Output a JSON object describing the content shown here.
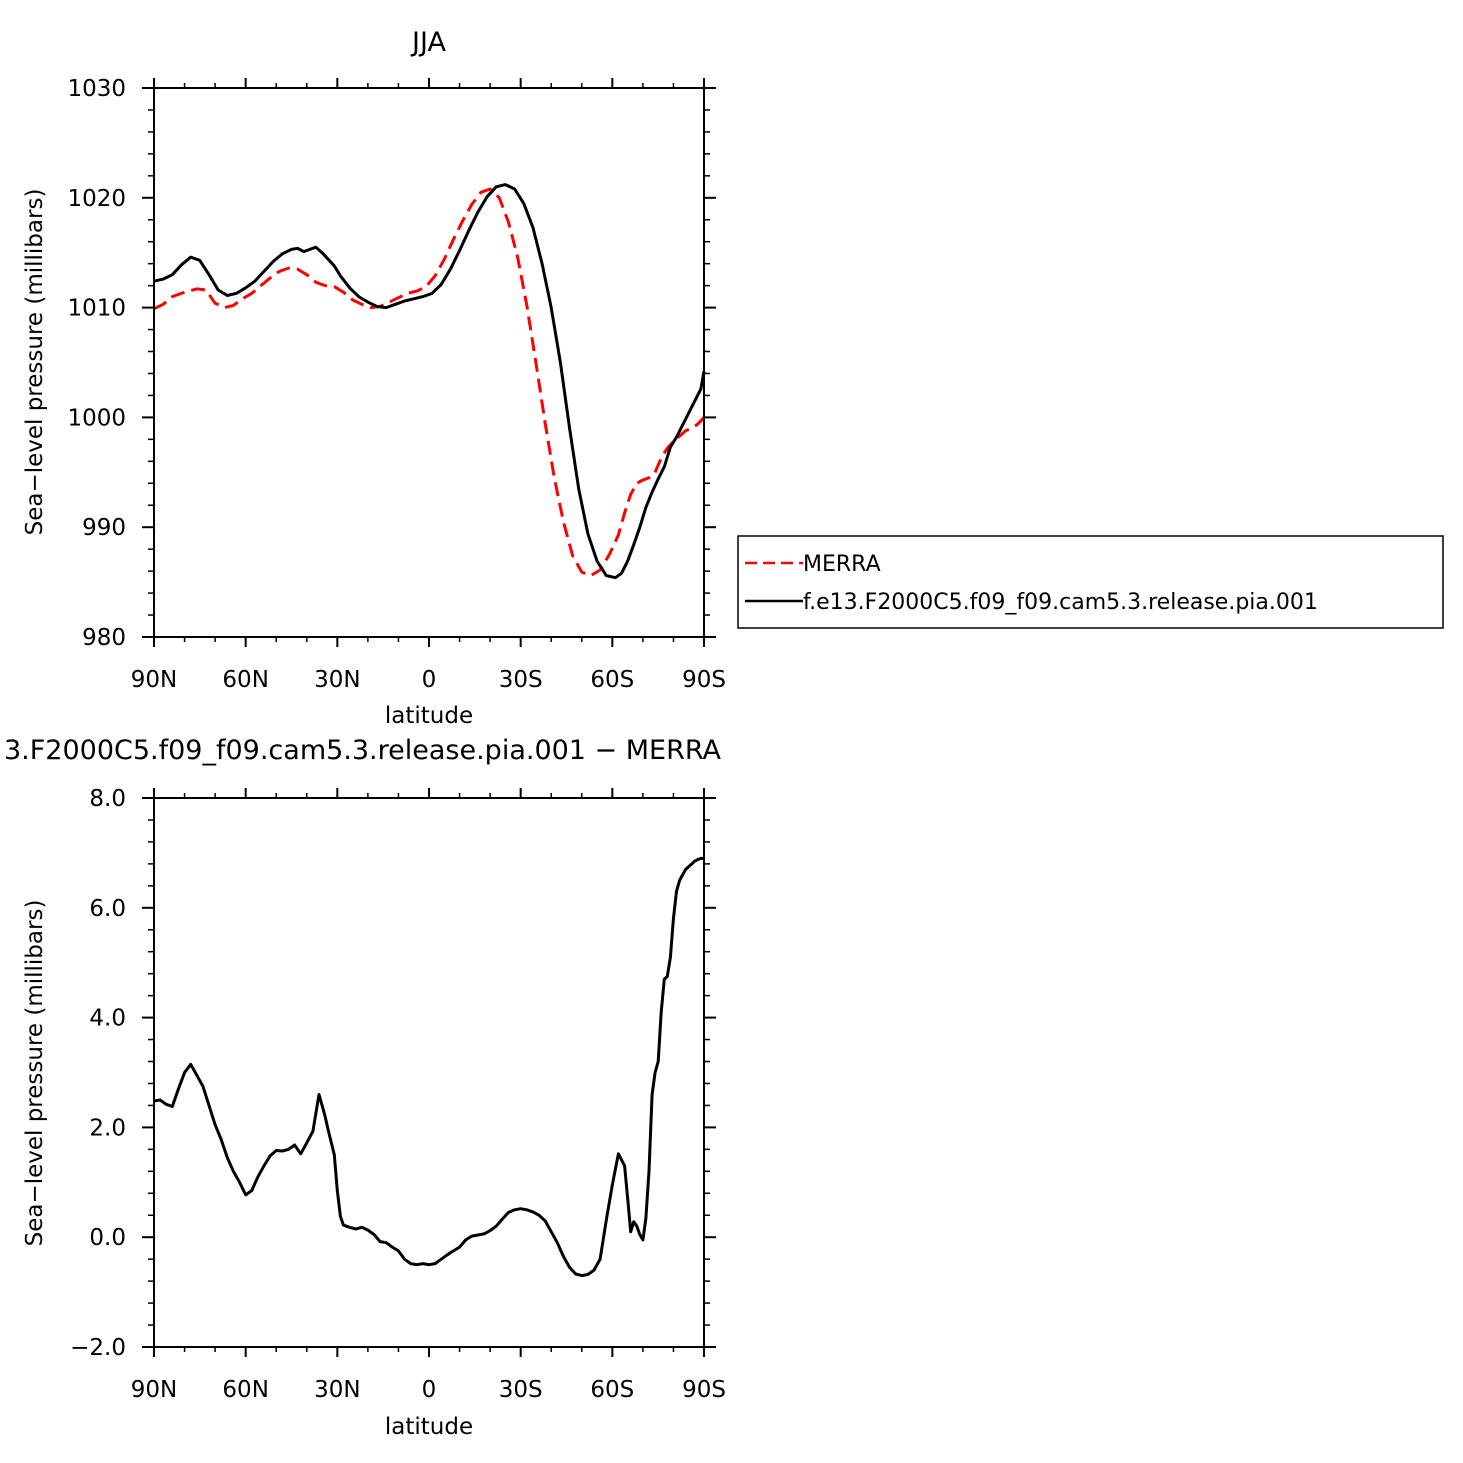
{
  "figure": {
    "top_title": "JJA",
    "bottom_title": "3.F2000C5.f09_f09.cam5.3.release.pia.001  −  MERRA"
  },
  "chart_data": [
    {
      "type": "line",
      "title": "JJA",
      "xlabel": "latitude",
      "ylabel": "Sea−level pressure (millibars)",
      "xlim": [
        90,
        -90
      ],
      "ylim": [
        980,
        1030
      ],
      "xticks": [
        90,
        60,
        30,
        0,
        -30,
        -60,
        -90
      ],
      "xticklabels": [
        "90N",
        "60N",
        "30N",
        "0",
        "30S",
        "60S",
        "90S"
      ],
      "yticks": [
        980,
        990,
        1000,
        1010,
        1020,
        1030
      ],
      "yticklabels": [
        "980",
        "990",
        "1000",
        "1010",
        "1020",
        "1030"
      ],
      "legend_position": "right",
      "series": [
        {
          "name": "MERRA",
          "color": "#ff0000",
          "dash": "dashed",
          "x": [
            90,
            87,
            84,
            80,
            76,
            73,
            70,
            67,
            64,
            61,
            58,
            55,
            52,
            49,
            46,
            43,
            40,
            37,
            34,
            31,
            28,
            25,
            22,
            19,
            16,
            13,
            10,
            7,
            4,
            1,
            -2,
            -5,
            -8,
            -11,
            -14,
            -17,
            -20,
            -23,
            -26,
            -29,
            -32,
            -35,
            -38,
            -41,
            -44,
            -47,
            -50,
            -53,
            -56,
            -59,
            -62,
            -64,
            -66,
            -68,
            -70,
            -72,
            -74,
            -76,
            -78,
            -80,
            -82,
            -84,
            -86,
            -88,
            -90
          ],
          "y": [
            1009.9,
            1010.3,
            1011.0,
            1011.4,
            1011.7,
            1011.6,
            1010.4,
            1010.0,
            1010.2,
            1010.8,
            1011.3,
            1012.0,
            1012.7,
            1013.3,
            1013.6,
            1013.5,
            1013.0,
            1012.3,
            1012.0,
            1011.9,
            1011.4,
            1010.7,
            1010.3,
            1010.0,
            1010.1,
            1010.5,
            1010.9,
            1011.3,
            1011.5,
            1011.9,
            1012.9,
            1014.4,
            1016.2,
            1017.9,
            1019.4,
            1020.5,
            1020.8,
            1020.0,
            1017.8,
            1014.6,
            1010.2,
            1005.0,
            999.5,
            994.5,
            990.5,
            987.4,
            985.9,
            985.6,
            986.1,
            987.5,
            989.3,
            991.3,
            993.0,
            994.0,
            994.3,
            994.5,
            995.0,
            996.3,
            997.2,
            997.8,
            998.3,
            998.8,
            999.0,
            999.4,
            1000.0
          ]
        },
        {
          "name": "f.e13.F2000C5.f09_f09.cam5.3.release.pia.001",
          "color": "#000000",
          "dash": "solid",
          "x": [
            90,
            87,
            84,
            81,
            78,
            75,
            72,
            69,
            66,
            63,
            60,
            57,
            54,
            51,
            48,
            45,
            43,
            41,
            39,
            37,
            35,
            33,
            31,
            29,
            26,
            23,
            20,
            17,
            14,
            11,
            8,
            5,
            2,
            -1,
            -4,
            -7,
            -10,
            -13,
            -16,
            -19,
            -22,
            -25,
            -28,
            -31,
            -34,
            -37,
            -40,
            -43,
            -46,
            -49,
            -52,
            -55,
            -58,
            -61,
            -63,
            -65,
            -67,
            -69,
            -71,
            -73,
            -75,
            -77,
            -79,
            -81,
            -83,
            -85,
            -87,
            -89,
            -90
          ],
          "y": [
            1012.4,
            1012.6,
            1013.0,
            1013.9,
            1014.6,
            1014.3,
            1013.0,
            1011.6,
            1011.1,
            1011.3,
            1011.8,
            1012.4,
            1013.3,
            1014.2,
            1014.9,
            1015.3,
            1015.4,
            1015.1,
            1015.3,
            1015.5,
            1015.0,
            1014.4,
            1013.8,
            1012.9,
            1011.8,
            1011.0,
            1010.5,
            1010.1,
            1010.0,
            1010.3,
            1010.6,
            1010.8,
            1011.0,
            1011.3,
            1012.1,
            1013.5,
            1015.2,
            1017.0,
            1018.7,
            1020.1,
            1021.0,
            1021.2,
            1020.8,
            1019.5,
            1017.3,
            1014.0,
            1010.0,
            1005.0,
            999.0,
            993.5,
            989.4,
            986.9,
            985.6,
            985.4,
            985.8,
            986.9,
            988.4,
            990.0,
            991.8,
            993.2,
            994.4,
            995.5,
            997.3,
            998.2,
            999.3,
            1000.4,
            1001.5,
            1002.6,
            1004.2
          ]
        }
      ]
    },
    {
      "type": "line",
      "title": "3.F2000C5.f09_f09.cam5.3.release.pia.001  −  MERRA",
      "xlabel": "latitude",
      "ylabel": "Sea−level pressure (millibars)",
      "xlim": [
        90,
        -90
      ],
      "ylim": [
        -2.0,
        8.0
      ],
      "xticks": [
        90,
        60,
        30,
        0,
        -30,
        -60,
        -90
      ],
      "xticklabels": [
        "90N",
        "60N",
        "30N",
        "0",
        "30S",
        "60S",
        "90S"
      ],
      "yticks": [
        -2.0,
        0.0,
        2.0,
        4.0,
        6.0,
        8.0
      ],
      "yticklabels": [
        "−2.0",
        "0.0",
        "2.0",
        "4.0",
        "6.0",
        "8.0"
      ],
      "series": [
        {
          "color": "#000000",
          "dash": "solid",
          "x": [
            90,
            88,
            86,
            84,
            82,
            80,
            78,
            76,
            74,
            72,
            70,
            68,
            66,
            64,
            62,
            60,
            58,
            56,
            54,
            52,
            50,
            48,
            46,
            44,
            42,
            40,
            38,
            36,
            35,
            34,
            33,
            31,
            30,
            29,
            28,
            27,
            26,
            24,
            22,
            20,
            18,
            16,
            14,
            12,
            10,
            8,
            6,
            4,
            2,
            0,
            -2,
            -4,
            -6,
            -8,
            -10,
            -12,
            -14,
            -16,
            -18,
            -20,
            -22,
            -24,
            -26,
            -28,
            -30,
            -32,
            -34,
            -36,
            -38,
            -40,
            -42,
            -44,
            -46,
            -48,
            -50,
            -52,
            -54,
            -56,
            -58,
            -60,
            -62,
            -64,
            -65,
            -66,
            -67,
            -68,
            -69,
            -70,
            -71,
            -72,
            -73,
            -74,
            -75,
            -76,
            -77,
            -78,
            -79,
            -80,
            -81,
            -82,
            -83,
            -84,
            -85,
            -86,
            -87,
            -88,
            -89,
            -90
          ],
          "y": [
            2.48,
            2.5,
            2.42,
            2.38,
            2.7,
            3.0,
            3.15,
            2.95,
            2.75,
            2.4,
            2.05,
            1.78,
            1.45,
            1.2,
            1.0,
            0.77,
            0.85,
            1.1,
            1.3,
            1.48,
            1.58,
            1.57,
            1.6,
            1.68,
            1.52,
            1.72,
            1.93,
            2.6,
            2.4,
            2.2,
            1.95,
            1.5,
            0.85,
            0.38,
            0.22,
            0.2,
            0.18,
            0.15,
            0.18,
            0.13,
            0.05,
            -0.08,
            -0.1,
            -0.18,
            -0.25,
            -0.4,
            -0.48,
            -0.5,
            -0.48,
            -0.5,
            -0.48,
            -0.4,
            -0.32,
            -0.25,
            -0.18,
            -0.05,
            0.02,
            0.04,
            0.06,
            0.12,
            0.2,
            0.33,
            0.45,
            0.5,
            0.52,
            0.5,
            0.46,
            0.4,
            0.3,
            0.1,
            -0.1,
            -0.35,
            -0.55,
            -0.67,
            -0.7,
            -0.68,
            -0.6,
            -0.4,
            0.3,
            0.95,
            1.52,
            1.3,
            0.72,
            0.1,
            0.28,
            0.2,
            0.05,
            -0.05,
            0.35,
            1.2,
            2.6,
            3.0,
            3.2,
            4.1,
            4.7,
            4.75,
            5.1,
            5.8,
            6.3,
            6.5,
            6.6,
            6.7,
            6.75,
            6.8,
            6.85,
            6.88,
            6.9,
            6.9
          ]
        }
      ]
    }
  ],
  "legend": {
    "items": [
      {
        "label": "MERRA",
        "color": "#ff0000",
        "dash": "dashed"
      },
      {
        "label": "f.e13.F2000C5.f09_f09.cam5.3.release.pia.001",
        "color": "#000000",
        "dash": "solid"
      }
    ]
  }
}
